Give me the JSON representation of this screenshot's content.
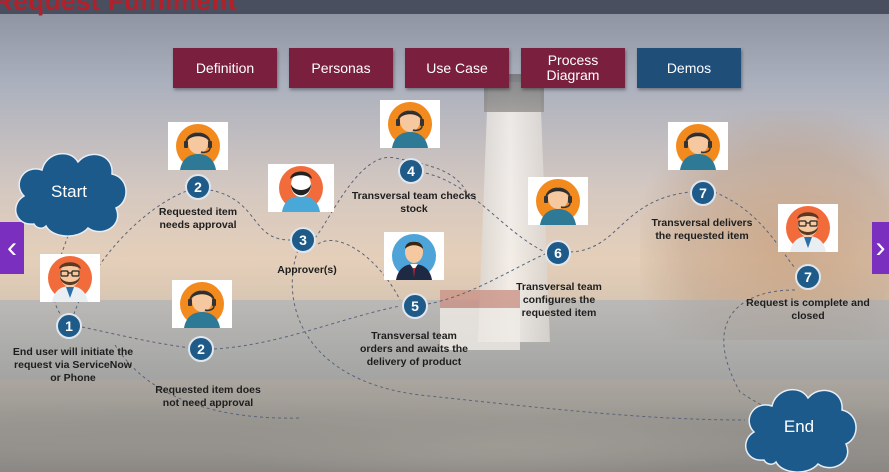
{
  "title": "Request Fulfilment",
  "tabs": [
    {
      "label": "Definition"
    },
    {
      "label": "Personas"
    },
    {
      "label": "Use Case"
    },
    {
      "label": "Process Diagram"
    },
    {
      "label": "Demos"
    }
  ],
  "nav": {
    "prev": "‹",
    "next": "›"
  },
  "start_label": "Start",
  "end_label": "End",
  "steps": [
    {
      "number": "1",
      "text": "End user will initiate the request via ServiceNow or Phone"
    },
    {
      "number": "2",
      "text": "Requested item needs approval"
    },
    {
      "number": "2",
      "text": "Requested item does not need approval"
    },
    {
      "number": "3",
      "text": "Approver(s)"
    },
    {
      "number": "4",
      "text": "Transversal team checks stock"
    },
    {
      "number": "5",
      "text": "Transversal team orders and awaits the delivery of product"
    },
    {
      "number": "6",
      "text": "Transversal team configures the requested item"
    },
    {
      "number": "7",
      "text": "Transversal delivers the requested item"
    },
    {
      "number": "7",
      "text": "Request is complete and closed"
    }
  ],
  "colors": {
    "tab": "#7a1f3d",
    "tab_active": "#1f4e79",
    "step": "#1f5b88",
    "cloud": "#1c5a8c",
    "nav": "#7b2fbe",
    "title": "#b3202a"
  },
  "avatars": [
    {
      "icon": "bearded-man-glasses-icon"
    },
    {
      "icon": "support-agent-headset-icon"
    },
    {
      "icon": "bearded-man-icon"
    },
    {
      "icon": "businessman-icon"
    },
    {
      "icon": "bearded-man-glasses-icon"
    }
  ]
}
